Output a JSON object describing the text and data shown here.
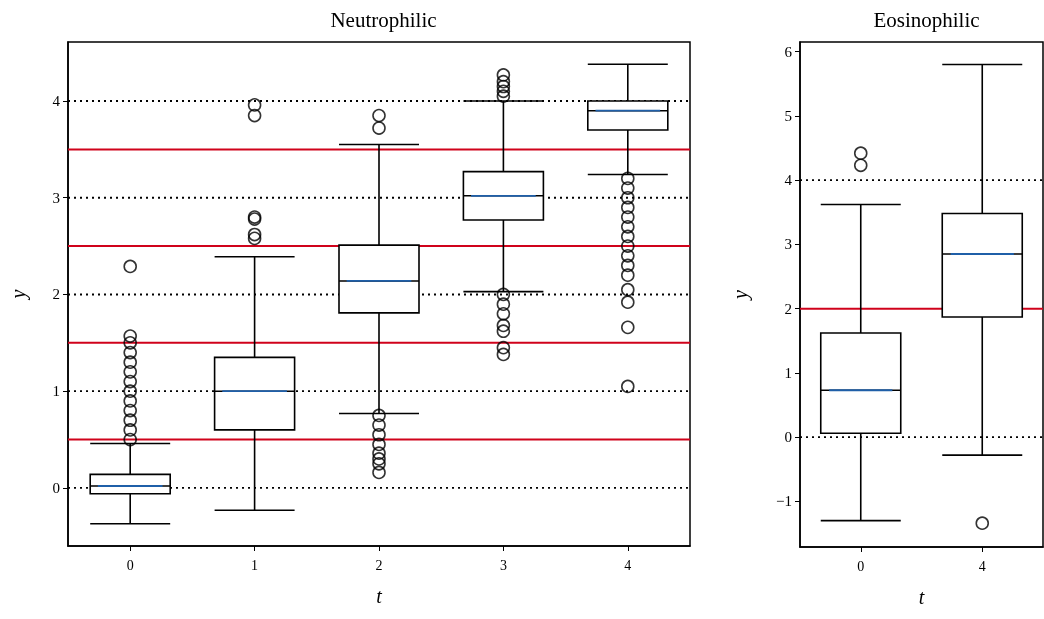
{
  "chart_data": [
    {
      "type": "box",
      "title": "Neutrophilic",
      "xlabel": "t",
      "ylabel": "y",
      "categories": [
        "0",
        "1",
        "2",
        "3",
        "4"
      ],
      "ylim": [
        -0.6,
        4.61
      ],
      "yticks": [
        0,
        1,
        2,
        3,
        4
      ],
      "series": [
        {
          "color": "#000000",
          "boxes": [
            {
              "low": -0.37,
              "q1": -0.06,
              "median": 0.02,
              "q3": 0.14,
              "high": 0.46,
              "outliers": [
                0.5,
                0.6,
                0.7,
                0.8,
                0.9,
                1.0,
                1.1,
                1.2,
                1.3,
                1.4,
                1.5,
                1.57,
                2.29
              ]
            },
            {
              "low": -0.23,
              "q1": 0.6,
              "median": 1.0,
              "q3": 1.35,
              "high": 2.39,
              "outliers": [
                2.58,
                2.62,
                2.78,
                2.8,
                3.85,
                3.96
              ]
            },
            {
              "low": 0.77,
              "q1": 1.81,
              "median": 2.14,
              "q3": 2.51,
              "high": 3.55,
              "outliers": [
                0.16,
                0.25,
                0.3,
                0.36,
                0.45,
                0.55,
                0.65,
                0.75,
                3.72,
                3.85
              ]
            },
            {
              "low": 2.03,
              "q1": 2.77,
              "median": 3.02,
              "q3": 3.27,
              "high": 4.0,
              "outliers": [
                1.38,
                1.45,
                1.62,
                1.68,
                1.8,
                1.9,
                2.0,
                4.05,
                4.1,
                4.15,
                4.2,
                4.27
              ]
            },
            {
              "low": 3.24,
              "q1": 3.7,
              "median": 3.9,
              "q3": 4.0,
              "high": 4.38,
              "outliers": [
                1.05,
                1.66,
                1.92,
                2.05,
                2.2,
                2.3,
                2.4,
                2.5,
                2.6,
                2.7,
                2.8,
                2.9,
                3.0,
                3.1,
                3.2
              ]
            }
          ]
        }
      ],
      "ref_lines": [
        {
          "axis": "y",
          "value": 0,
          "color": "#000000",
          "line_style": "dotted"
        },
        {
          "axis": "y",
          "value": 1,
          "color": "#000000",
          "line_style": "dotted"
        },
        {
          "axis": "y",
          "value": 2,
          "color": "#000000",
          "line_style": "dotted"
        },
        {
          "axis": "y",
          "value": 3,
          "color": "#000000",
          "line_style": "dotted"
        },
        {
          "axis": "y",
          "value": 4,
          "color": "#000000",
          "line_style": "dotted"
        },
        {
          "axis": "y",
          "value": 0.5,
          "color": "#d0021b",
          "line_style": "solid"
        },
        {
          "axis": "y",
          "value": 1.5,
          "color": "#d0021b",
          "line_style": "solid"
        },
        {
          "axis": "y",
          "value": 2.5,
          "color": "#d0021b",
          "line_style": "solid"
        },
        {
          "axis": "y",
          "value": 3.5,
          "color": "#d0021b",
          "line_style": "solid"
        }
      ]
    },
    {
      "type": "box",
      "title": "Eosinophilic",
      "xlabel": "t",
      "ylabel": "y",
      "categories": [
        "0",
        "4"
      ],
      "ylim": [
        -1.71,
        6.15
      ],
      "yticks": [
        {
          "value": -1,
          "label": "−1"
        },
        0,
        1,
        2,
        3,
        4,
        5,
        6
      ],
      "series": [
        {
          "color": "#000000",
          "boxes": [
            {
              "low": -1.3,
              "q1": 0.06,
              "median": 0.73,
              "q3": 1.62,
              "high": 3.62,
              "outliers": [
                4.23,
                4.42
              ]
            },
            {
              "low": -0.28,
              "q1": 1.87,
              "median": 2.85,
              "q3": 3.48,
              "high": 5.8,
              "outliers": [
                -1.34
              ]
            }
          ]
        }
      ],
      "ref_lines": [
        {
          "axis": "y",
          "value": 0,
          "color": "#000000",
          "line_style": "dotted"
        },
        {
          "axis": "y",
          "value": 4,
          "color": "#000000",
          "line_style": "dotted"
        },
        {
          "axis": "y",
          "value": 2,
          "color": "#d0021b",
          "line_style": "solid"
        }
      ]
    }
  ]
}
